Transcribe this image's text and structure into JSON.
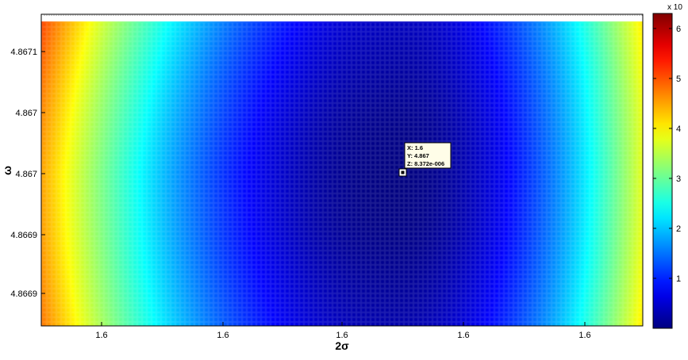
{
  "chart_data": {
    "type": "heatmap",
    "title": "",
    "xlabel": "2σ",
    "ylabel": "ω",
    "x_tick_labels": [
      "1.6",
      "1.6",
      "1.6",
      "1.6",
      "1.6"
    ],
    "y_tick_labels": [
      "4.8671",
      "4.867",
      "4.867",
      "4.8669",
      "4.8669"
    ],
    "colorbar": {
      "ticks": [
        "1",
        "2",
        "3",
        "4",
        "5",
        "6"
      ],
      "range": [
        0,
        6.3
      ],
      "multiplier_label": "x 10",
      "colormap": "jet"
    },
    "surface": {
      "min_value": 8.3e-06,
      "min_location_x_fraction": 0.59,
      "min_location_y_fraction": 0.5,
      "corner_values": {
        "top_left": 6.3,
        "bottom_left": 5.3,
        "top_right": 4.2,
        "bottom_right": 4.2
      }
    },
    "datatip": {
      "lines": [
        "X: 1.6",
        "Y: 4.867",
        "Z: 8.372e-006"
      ]
    },
    "grid": false
  }
}
